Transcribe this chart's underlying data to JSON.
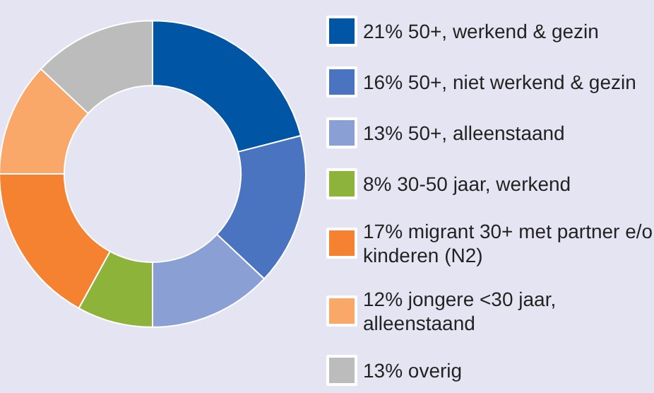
{
  "chart_data": {
    "type": "donut",
    "categories": [
      "21% 50+, werkend & gezin",
      "16% 50+, niet werkend & gezin",
      "13% 50+, alleenstaand",
      "8% 30-50 jaar, werkend",
      "17% migrant 30+ met partner e/o kinderen (N2)",
      "12% jongere <30 jaar, alleenstaand",
      "13% overig"
    ],
    "values": [
      21,
      16,
      13,
      8,
      17,
      12,
      13
    ],
    "colors": [
      "#0055a5",
      "#4a74c0",
      "#8aa0d4",
      "#8db33a",
      "#f58231",
      "#f9a86a",
      "#bcbcbc"
    ],
    "legend": "right"
  }
}
